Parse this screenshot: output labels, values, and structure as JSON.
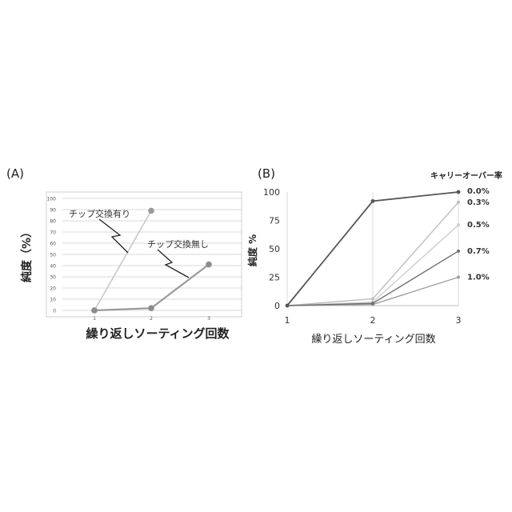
{
  "chart_data": [
    {
      "panel_label": "(A)",
      "type": "line",
      "ylabel": "純度（%）",
      "xlabel": "繰り返しソーティング回数",
      "ylim": [
        0,
        100
      ],
      "y_ticks": [
        "0",
        "10",
        "20",
        "30",
        "40",
        "50",
        "60",
        "70",
        "80",
        "90",
        "100"
      ],
      "categories": [
        "1",
        "2",
        "3"
      ],
      "grid": true,
      "series": [
        {
          "name": "チップ交換有り",
          "values": [
            0,
            89,
            null
          ],
          "color": "#c8c8c8"
        },
        {
          "name": "チップ交換無し",
          "values": [
            0,
            2,
            41
          ],
          "color": "#9a9a9a"
        }
      ]
    },
    {
      "panel_label": "(B)",
      "type": "line",
      "ylabel": "純度 %",
      "xlabel": "繰り返しソーティング回数",
      "ylim": [
        0,
        100
      ],
      "y_ticks": [
        "0",
        "25",
        "50",
        "75",
        "100"
      ],
      "categories": [
        "1",
        "2",
        "3"
      ],
      "grid": true,
      "legend_title": "キャリーオーバー率",
      "series": [
        {
          "name": "0.0%",
          "values": [
            0,
            92,
            100
          ],
          "color": "#555555"
        },
        {
          "name": "0.3%",
          "values": [
            0,
            6,
            91
          ],
          "color": "#bdbdbd"
        },
        {
          "name": "0.5%",
          "values": [
            0,
            3,
            71
          ],
          "color": "#cfcfcf"
        },
        {
          "name": "0.7%",
          "values": [
            0,
            2,
            48
          ],
          "color": "#6e6e6e"
        },
        {
          "name": "1.0%",
          "values": [
            0,
            1,
            25
          ],
          "color": "#9e9e9e"
        }
      ]
    }
  ]
}
